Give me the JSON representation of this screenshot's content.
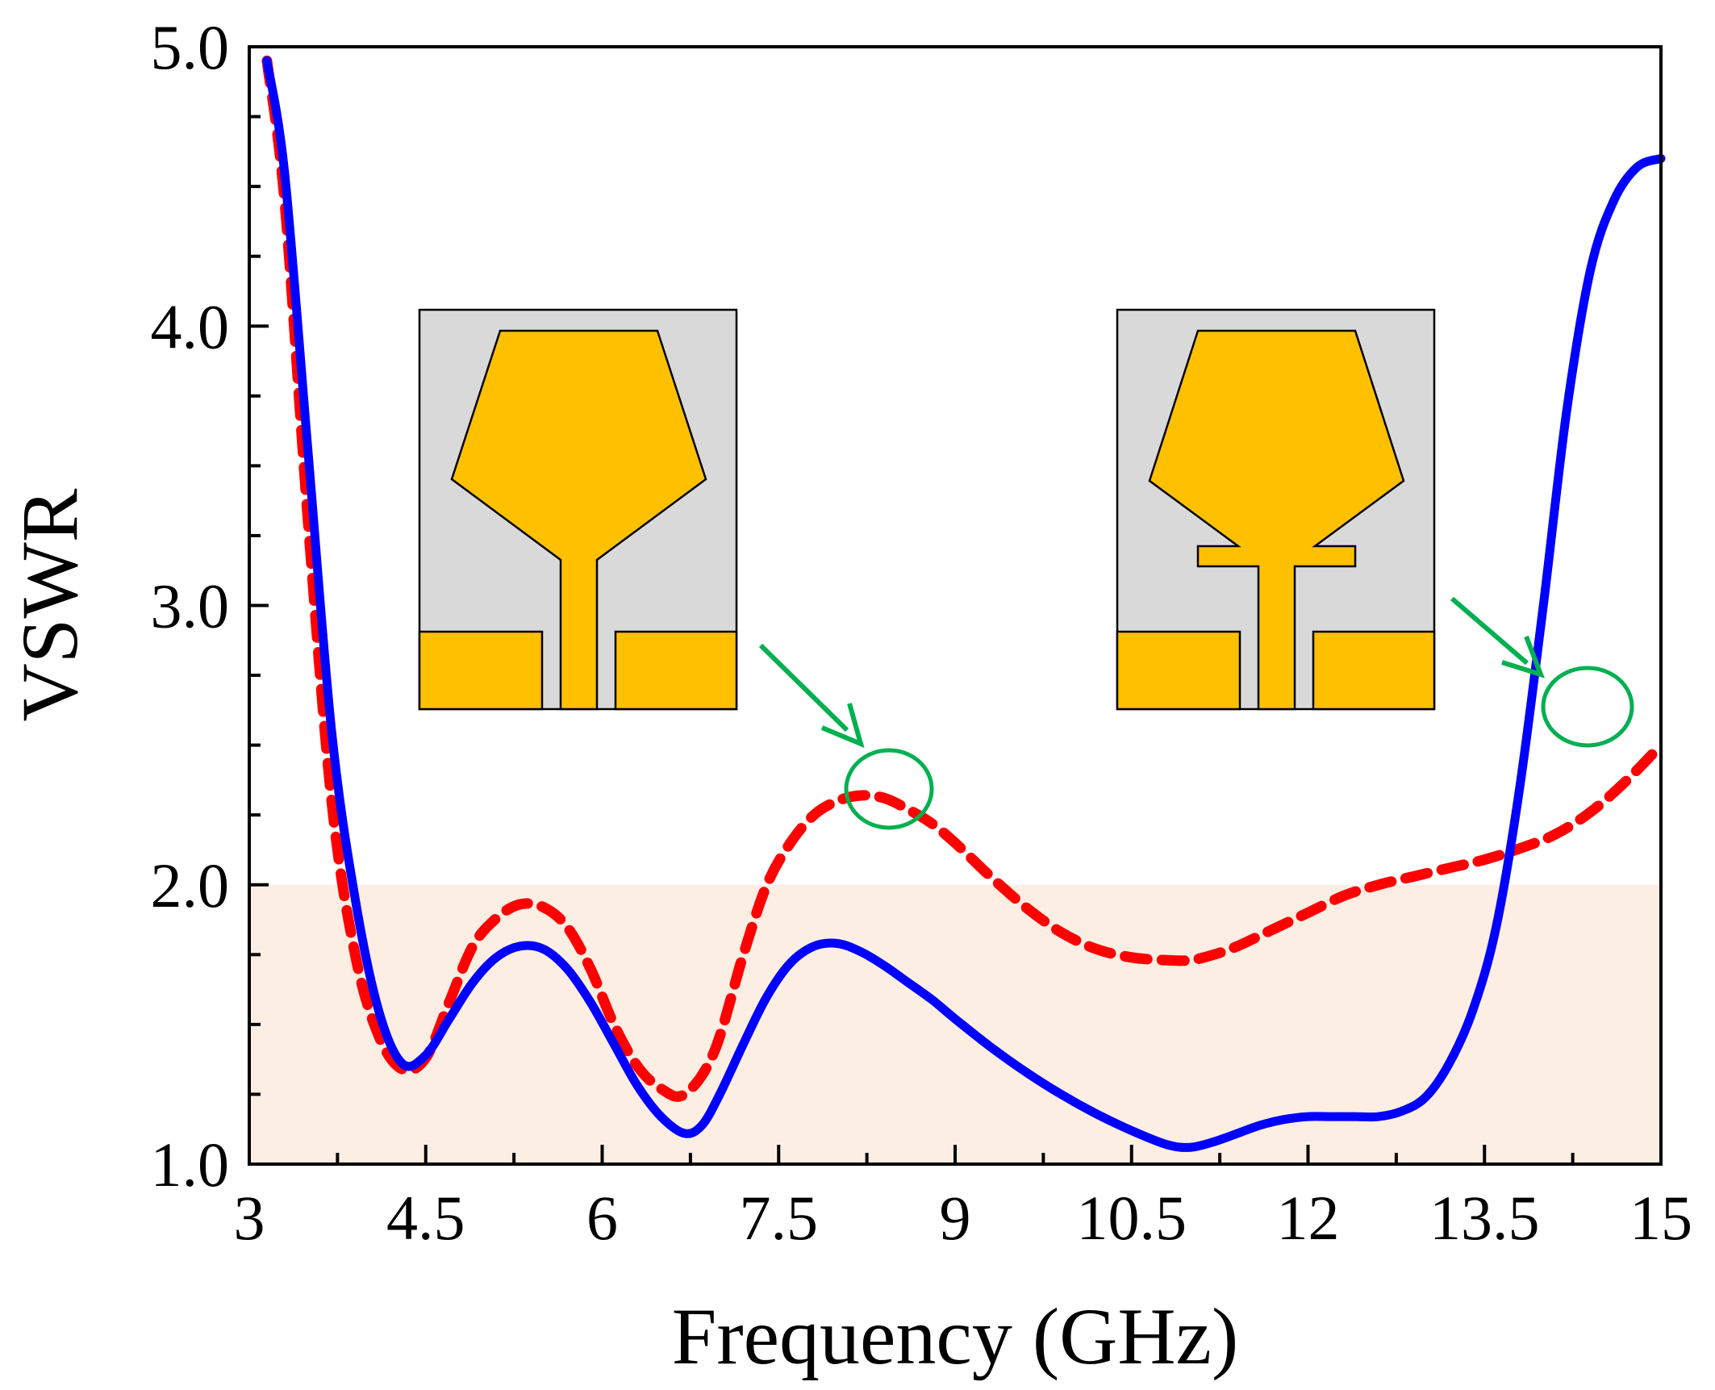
{
  "chart_data": {
    "type": "line",
    "title": "",
    "xlabel": "Frequency (GHz)",
    "ylabel": "VSWR",
    "xlim": [
      3,
      15
    ],
    "ylim": [
      1.0,
      5.0
    ],
    "x_ticks": [
      3,
      4.5,
      6,
      7.5,
      9,
      10.5,
      12,
      13.5,
      15
    ],
    "x_tick_labels": [
      "3",
      "4.5",
      "6",
      "7.5",
      "9",
      "10.5",
      "12",
      "13.5",
      "15"
    ],
    "y_ticks": [
      1.0,
      2.0,
      3.0,
      4.0,
      5.0
    ],
    "y_tick_labels": [
      "1.0",
      "2.0",
      "3.0",
      "4.0",
      "5.0"
    ],
    "x_minor_step": 0.75,
    "y_minor_step": 0.25,
    "threshold_band": {
      "from": 1.0,
      "to": 2.0,
      "color": "#fdeee4"
    },
    "grid": false,
    "legend": "none",
    "series": [
      {
        "name": "antenna-with-slot",
        "style": "solid",
        "color": "#0000ff",
        "x": [
          3.15,
          3.3,
          3.5,
          3.7,
          3.9,
          4.1,
          4.3,
          4.5,
          4.7,
          4.9,
          5.1,
          5.3,
          5.5,
          5.7,
          5.9,
          6.1,
          6.3,
          6.5,
          6.7,
          6.85,
          7.0,
          7.2,
          7.4,
          7.6,
          7.8,
          8.0,
          8.2,
          8.4,
          8.6,
          8.8,
          9.0,
          9.3,
          9.6,
          9.9,
          10.2,
          10.5,
          10.8,
          11.0,
          11.2,
          11.4,
          11.6,
          11.8,
          12.0,
          12.2,
          12.4,
          12.6,
          12.8,
          13.0,
          13.2,
          13.4,
          13.6,
          13.8,
          14.0,
          14.2,
          14.4,
          14.6,
          14.8,
          15.0
        ],
        "values": [
          4.95,
          4.55,
          3.55,
          2.55,
          1.95,
          1.55,
          1.36,
          1.39,
          1.52,
          1.65,
          1.74,
          1.78,
          1.77,
          1.7,
          1.58,
          1.43,
          1.28,
          1.17,
          1.11,
          1.14,
          1.25,
          1.43,
          1.6,
          1.72,
          1.78,
          1.79,
          1.76,
          1.71,
          1.65,
          1.59,
          1.52,
          1.42,
          1.33,
          1.25,
          1.18,
          1.12,
          1.07,
          1.06,
          1.08,
          1.11,
          1.14,
          1.16,
          1.17,
          1.17,
          1.17,
          1.17,
          1.19,
          1.24,
          1.36,
          1.55,
          1.85,
          2.35,
          3.0,
          3.7,
          4.2,
          4.45,
          4.57,
          4.6
        ]
      },
      {
        "name": "antenna-without-slot",
        "style": "dashed",
        "color": "#ff0000",
        "x": [
          3.15,
          3.3,
          3.5,
          3.7,
          3.9,
          4.1,
          4.3,
          4.5,
          4.7,
          4.9,
          5.1,
          5.3,
          5.5,
          5.7,
          5.9,
          6.1,
          6.3,
          6.5,
          6.7,
          6.95,
          7.2,
          7.4,
          7.6,
          7.8,
          8.0,
          8.2,
          8.4,
          8.6,
          8.8,
          9.0,
          9.3,
          9.6,
          9.9,
          10.2,
          10.5,
          10.8,
          11.0,
          11.2,
          11.4,
          11.6,
          11.8,
          12.0,
          12.3,
          12.6,
          12.9,
          13.2,
          13.5,
          13.8,
          14.1,
          14.4,
          14.7,
          15.0
        ],
        "values": [
          4.95,
          4.45,
          3.3,
          2.3,
          1.75,
          1.46,
          1.34,
          1.38,
          1.58,
          1.78,
          1.88,
          1.93,
          1.92,
          1.85,
          1.7,
          1.5,
          1.35,
          1.27,
          1.25,
          1.4,
          1.75,
          2.0,
          2.15,
          2.25,
          2.3,
          2.32,
          2.31,
          2.27,
          2.22,
          2.15,
          2.03,
          1.92,
          1.83,
          1.77,
          1.74,
          1.73,
          1.73,
          1.75,
          1.78,
          1.82,
          1.86,
          1.9,
          1.96,
          2.0,
          2.03,
          2.06,
          2.09,
          2.13,
          2.18,
          2.26,
          2.37,
          2.5
        ]
      }
    ]
  },
  "insets": [
    {
      "name": "inset-antenna-without-slot",
      "patch_color": "#ffc000",
      "substrate_color": "#d9d9d9"
    },
    {
      "name": "inset-antenna-with-slot",
      "patch_color": "#ffc000",
      "substrate_color": "#d9d9d9"
    }
  ],
  "annotations": [
    {
      "name": "highlight-circle-peak",
      "color": "#00b050",
      "at_x": 8.45,
      "at_y": 2.34
    },
    {
      "name": "highlight-circle-crossing",
      "color": "#00b050",
      "at_x": 14.25,
      "at_y": 2.65
    }
  ]
}
